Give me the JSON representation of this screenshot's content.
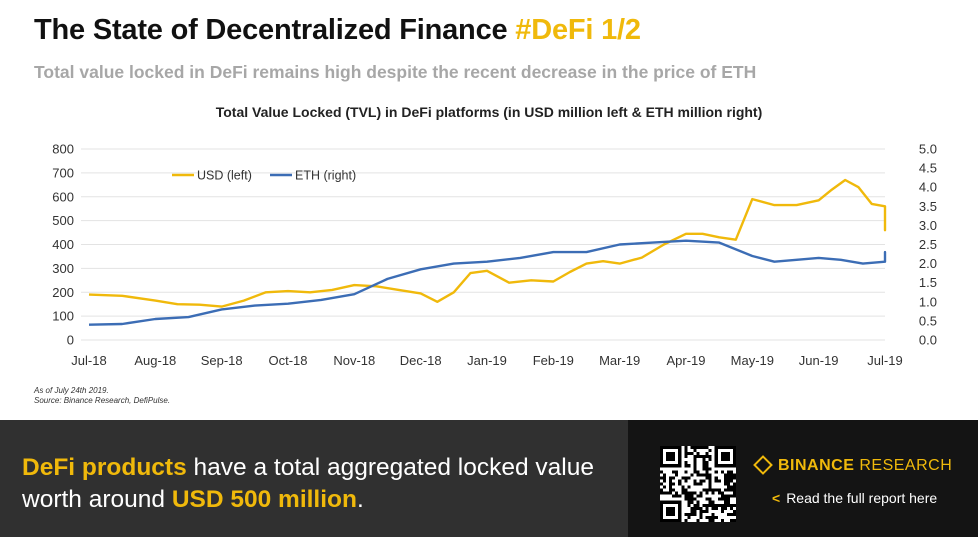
{
  "header": {
    "title": "The State of Decentralized Finance",
    "title_highlight": "#DeFi 1/2",
    "subtitle": "Total value locked in DeFi remains high despite the recent decrease in the price of ETH"
  },
  "notes": {
    "line1": "As of July 24th 2019.",
    "line2": "Source: Binance Research, DefiPulse."
  },
  "footer": {
    "msg_part1": "DeFi products",
    "msg_part2": " have a total aggregated locked value worth around ",
    "msg_part3": "USD 500 million",
    "msg_part4": ".",
    "brand_bold": "BINANCE",
    "brand_regular": " RESEARCH",
    "link_arrow": "<",
    "link_text": "Read the full report here"
  },
  "icons": {
    "logo": "binance-diamond-icon",
    "qr": "qr-code-icon",
    "arrow": "chevron-left-icon"
  },
  "colors": {
    "usd": "#f0b90b",
    "eth": "#3c6db5",
    "footer_left": "#303030",
    "footer_right": "#141414"
  },
  "chart_data": {
    "type": "line",
    "title": "Total Value Locked (TVL) in DeFi platforms (in USD million left & ETH million right)",
    "x_ticks": [
      "Jul-18",
      "Aug-18",
      "Sep-18",
      "Oct-18",
      "Nov-18",
      "Dec-18",
      "Jan-19",
      "Feb-19",
      "Mar-19",
      "Apr-19",
      "May-19",
      "Jun-19",
      "Jul-19"
    ],
    "y_left_ticks": [
      "0",
      "100",
      "200",
      "300",
      "400",
      "500",
      "600",
      "700",
      "800"
    ],
    "y_right_ticks": [
      "0.0",
      "0.5",
      "1.0",
      "1.5",
      "2.0",
      "2.5",
      "3.0",
      "3.5",
      "4.0",
      "4.5",
      "5.0"
    ],
    "y_left_range": [
      0,
      800
    ],
    "y_right_range": [
      0,
      5
    ],
    "x_range": [
      "Jul-18",
      "Jul-19"
    ],
    "grid": "horizontal",
    "legend_position": "top-left",
    "series": [
      {
        "name": "USD (left)",
        "axis": "left",
        "x": [
          "Jul-18",
          "Jul-18",
          "Aug-18",
          "Aug-18",
          "Aug-18",
          "Sep-18",
          "Sep-18",
          "Sep-18",
          "Oct-18",
          "Oct-18",
          "Oct-18",
          "Nov-18",
          "Nov-18",
          "Nov-18",
          "Dec-18",
          "Dec-18",
          "Dec-18",
          "Dec-18",
          "Jan-19",
          "Jan-19",
          "Jan-19",
          "Feb-19",
          "Feb-19",
          "Feb-19",
          "Feb-19",
          "Mar-19",
          "Mar-19",
          "Mar-19",
          "Apr-19",
          "Apr-19",
          "Apr-19",
          "Apr-19",
          "May-19",
          "May-19",
          "May-19",
          "Jun-19",
          "Jun-19",
          "Jun-19",
          "Jun-19",
          "Jun-19",
          "Jul-19",
          "Jul-19",
          "Jul-19",
          "Jul-19"
        ],
        "values": [
          190,
          185,
          165,
          150,
          148,
          140,
          165,
          200,
          205,
          200,
          210,
          230,
          225,
          210,
          195,
          160,
          200,
          280,
          290,
          240,
          250,
          245,
          285,
          320,
          330,
          320,
          345,
          400,
          445,
          445,
          430,
          420,
          590,
          565,
          565,
          585,
          630,
          670,
          640,
          570,
          560,
          460,
          525,
          470
        ]
      },
      {
        "name": "ETH (right)",
        "axis": "right",
        "x": [
          "Jul-18",
          "Jul-18",
          "Aug-18",
          "Aug-18",
          "Sep-18",
          "Sep-18",
          "Oct-18",
          "Oct-18",
          "Nov-18",
          "Nov-18",
          "Dec-18",
          "Dec-18",
          "Jan-19",
          "Jan-19",
          "Feb-19",
          "Feb-19",
          "Mar-19",
          "Mar-19",
          "Apr-19",
          "Apr-19",
          "May-19",
          "May-19",
          "May-19",
          "Jun-19",
          "Jun-19",
          "Jun-19",
          "Jul-19",
          "Jul-19",
          "Jul-19"
        ],
        "values": [
          0.4,
          0.42,
          0.55,
          0.6,
          0.8,
          0.9,
          0.95,
          1.05,
          1.2,
          1.6,
          1.85,
          2.0,
          2.05,
          2.15,
          2.3,
          2.3,
          2.5,
          2.55,
          2.6,
          2.55,
          2.2,
          2.05,
          2.1,
          2.15,
          2.1,
          2.0,
          2.05,
          2.3,
          2.15
        ]
      }
    ]
  }
}
